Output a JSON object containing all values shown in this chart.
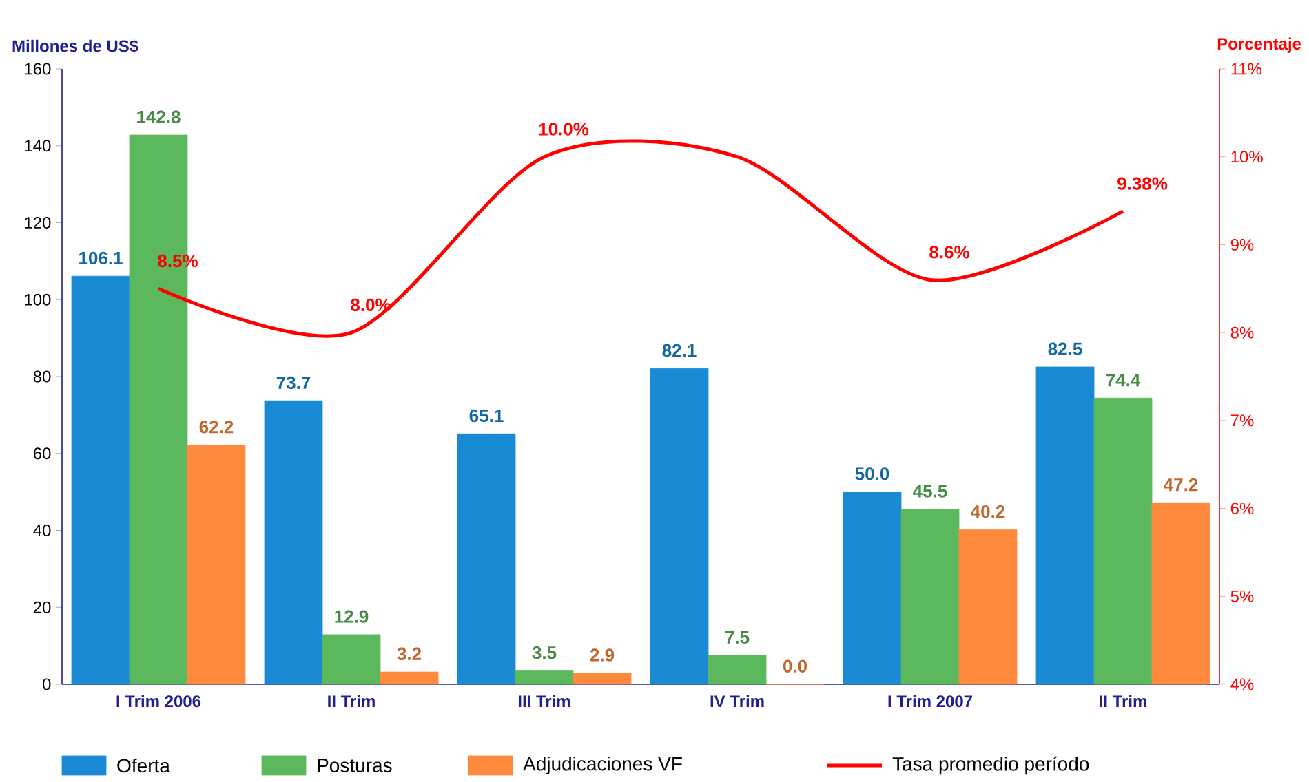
{
  "chart_data": {
    "type": "bar",
    "ylabel": "Millones de US$",
    "y2label": "Porcentaje",
    "categories": [
      "I  Trim    2006",
      "II Trim",
      "III Trim",
      "IV Trim",
      "I  Trim    2007",
      "II  Trim"
    ],
    "series": [
      {
        "name": "Oferta",
        "color": "#1a8ad4",
        "values": [
          106.1,
          73.7,
          65.1,
          82.1,
          50.0,
          82.5
        ],
        "value_labels": [
          "106.1",
          "73.7",
          "65.1",
          "82.1",
          "50.0",
          "82.5"
        ]
      },
      {
        "name": "Posturas",
        "color": "#5cb85c",
        "values": [
          142.8,
          12.9,
          3.5,
          7.5,
          45.5,
          74.4
        ],
        "value_labels": [
          "142.8",
          "12.9",
          "3.5",
          "7.5",
          "45.5",
          "74.4"
        ]
      },
      {
        "name": "Adjudicaciones VF",
        "color": "#ff8a3d",
        "values": [
          62.2,
          3.2,
          2.9,
          0.0,
          40.2,
          47.2
        ],
        "value_labels": [
          "62.2",
          "3.2",
          "2.9",
          "0.0",
          "40.2",
          "47.2"
        ]
      },
      {
        "name": "Tasa promedio período",
        "type": "line",
        "axis": "y2",
        "color": "#ff0000",
        "values": [
          8.5,
          8.0,
          10.0,
          10.0,
          8.6,
          9.38
        ],
        "value_labels": [
          "8.5%",
          "8.0%",
          "10.0%",
          null,
          "8.6%",
          "9.38%"
        ]
      }
    ],
    "ylim": [
      0,
      160
    ],
    "yticks": [
      0,
      20,
      40,
      60,
      80,
      100,
      120,
      140,
      160
    ],
    "y2lim": [
      4,
      11
    ],
    "y2ticks": [
      {
        "value": 4,
        "label": "4%"
      },
      {
        "value": 5,
        "label": "5%"
      },
      {
        "value": 6,
        "label": "6%"
      },
      {
        "value": 7,
        "label": "7%"
      },
      {
        "value": 8,
        "label": "8%"
      },
      {
        "value": 9,
        "label": "9%"
      },
      {
        "value": 10,
        "label": "10%"
      },
      {
        "value": 11,
        "label": "11%"
      }
    ],
    "grid": false,
    "legend": "bottom"
  }
}
